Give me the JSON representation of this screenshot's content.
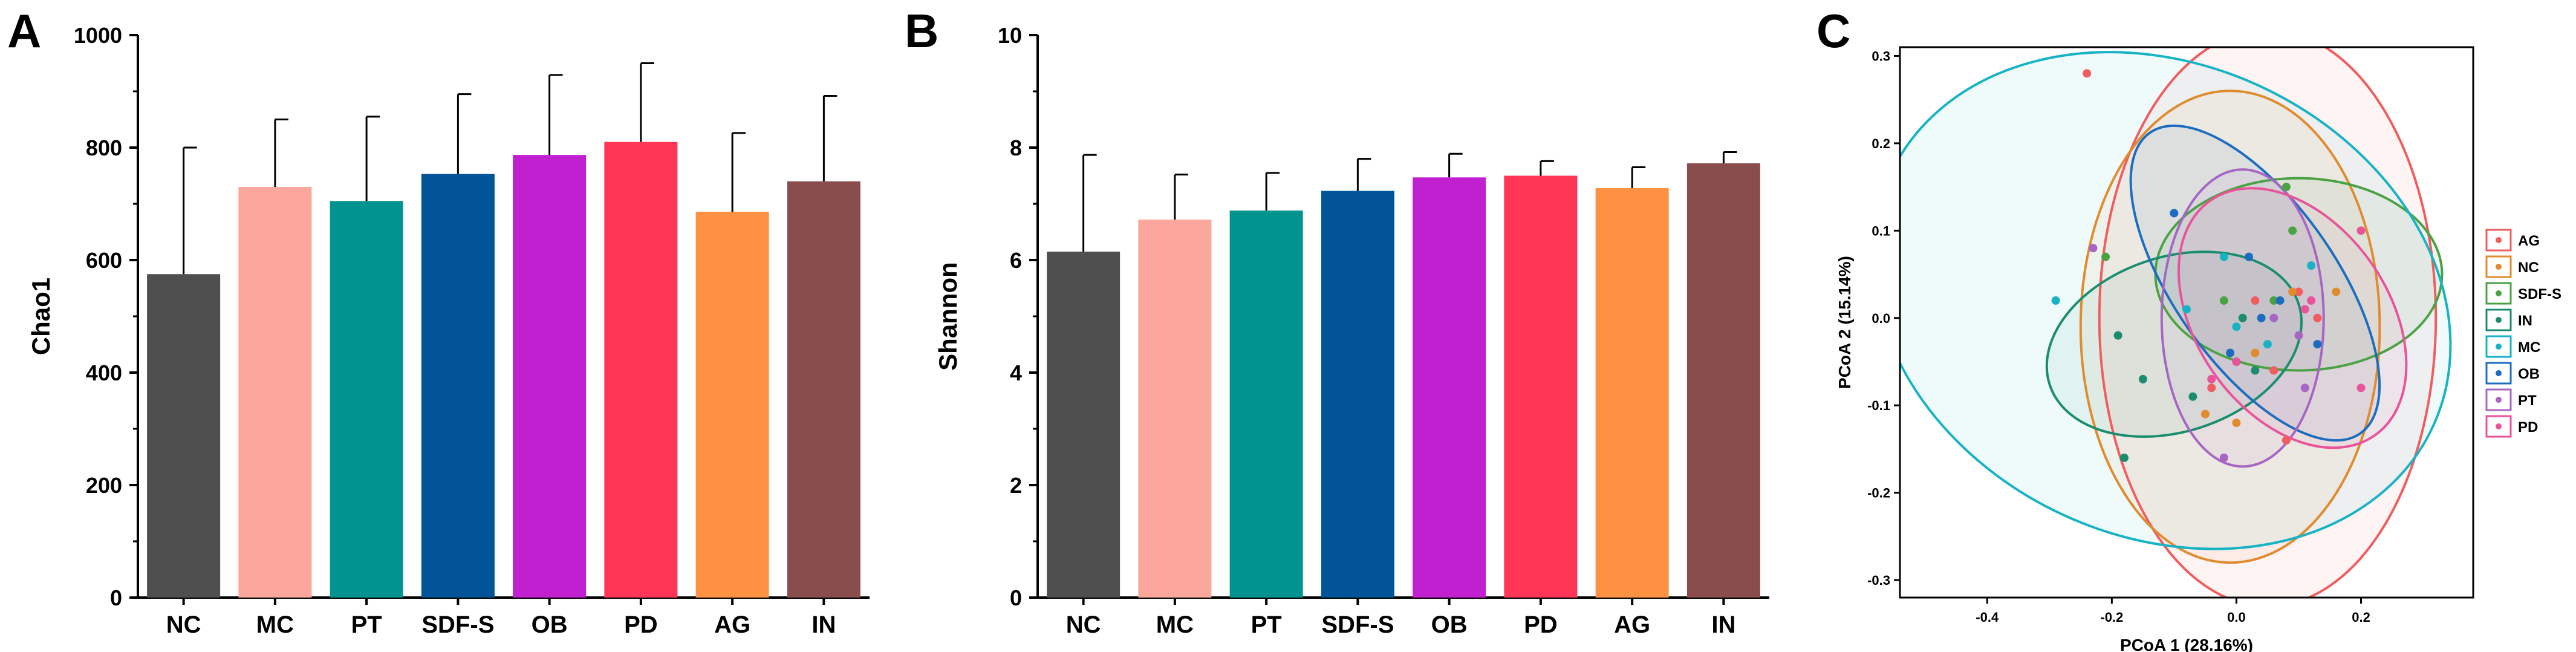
{
  "chart_data": [
    {
      "panel": "A",
      "type": "bar",
      "ylabel": "Chao1",
      "xlabel": "",
      "ylim": [
        0,
        1000
      ],
      "yticks": [
        0,
        200,
        400,
        600,
        800,
        1000
      ],
      "categories": [
        "NC",
        "MC",
        "PT",
        "SDF-S",
        "OB",
        "PD",
        "AG",
        "IN"
      ],
      "values": [
        575,
        730,
        705,
        753,
        787,
        810,
        686,
        740
      ],
      "errors": [
        225,
        120,
        150,
        142,
        142,
        140,
        140,
        152
      ],
      "colors": [
        "#4f4f4f",
        "#fba79b",
        "#00938f",
        "#005497",
        "#c120d0",
        "#ff3655",
        "#fe9143",
        "#8a4d4e"
      ]
    },
    {
      "panel": "B",
      "type": "bar",
      "ylabel": "Shannon",
      "xlabel": "",
      "ylim": [
        0,
        10
      ],
      "yticks": [
        0,
        2,
        4,
        6,
        8,
        10
      ],
      "categories": [
        "NC",
        "MC",
        "PT",
        "SDF-S",
        "OB",
        "PD",
        "AG",
        "IN"
      ],
      "values": [
        6.15,
        6.72,
        6.88,
        7.23,
        7.47,
        7.5,
        7.28,
        7.72
      ],
      "errors": [
        1.72,
        0.8,
        0.67,
        0.57,
        0.42,
        0.26,
        0.37,
        0.2
      ],
      "colors": [
        "#4f4f4f",
        "#fba79b",
        "#00938f",
        "#005497",
        "#c120d0",
        "#ff3655",
        "#fe9143",
        "#8a4d4e"
      ]
    },
    {
      "panel": "C",
      "type": "scatter",
      "xlabel": "PCoA 1 (28.16%)",
      "ylabel": "PCoA 2 (15.14%)",
      "xlim": [
        -0.54,
        0.38
      ],
      "ylim": [
        -0.32,
        0.31
      ],
      "xticks": [
        -0.4,
        -0.2,
        0.0,
        0.2
      ],
      "yticks": [
        -0.3,
        -0.2,
        -0.1,
        0.0,
        0.1,
        0.2,
        0.3
      ],
      "xtick_labels": [
        "-0.4",
        "-0.2",
        "0.0",
        "0.2"
      ],
      "ytick_labels": [
        "-0.3",
        "-0.2",
        "-0.1",
        "0.0",
        "0.1",
        "0.2",
        "0.3"
      ],
      "legend": [
        "AG",
        "NC",
        "SDF-S",
        "IN",
        "MC",
        "OB",
        "PT",
        "PD"
      ],
      "legend_position": "right",
      "series": [
        {
          "name": "AG",
          "color": "#f15d5f",
          "points": [
            [
              -0.24,
              0.28
            ],
            [
              0.08,
              -0.14
            ],
            [
              0.1,
              0.03
            ],
            [
              0.13,
              0.0
            ],
            [
              0.06,
              -0.06
            ],
            [
              -0.04,
              -0.08
            ],
            [
              0.03,
              0.02
            ]
          ],
          "ellipse": {
            "cx": 0.05,
            "cy": 0.0,
            "rx": 0.27,
            "ry": 0.33,
            "angle": 0
          }
        },
        {
          "name": "NC",
          "color": "#e08b2e",
          "points": [
            [
              -0.05,
              -0.11
            ],
            [
              0.0,
              -0.12
            ],
            [
              0.03,
              -0.04
            ],
            [
              0.16,
              0.03
            ],
            [
              0.09,
              0.03
            ]
          ],
          "ellipse": {
            "cx": -0.01,
            "cy": -0.01,
            "rx": 0.24,
            "ry": 0.27,
            "angle": 0
          }
        },
        {
          "name": "SDF-S",
          "color": "#4aa244",
          "points": [
            [
              -0.21,
              0.07
            ],
            [
              0.08,
              0.15
            ],
            [
              0.09,
              0.1
            ],
            [
              0.06,
              0.02
            ],
            [
              -0.02,
              0.02
            ]
          ],
          "ellipse": {
            "cx": 0.1,
            "cy": 0.05,
            "rx": 0.23,
            "ry": 0.11,
            "angle": 0
          }
        },
        {
          "name": "IN",
          "color": "#1a8d6e",
          "points": [
            [
              -0.18,
              -0.16
            ],
            [
              -0.19,
              -0.02
            ],
            [
              -0.15,
              -0.07
            ],
            [
              -0.07,
              -0.09
            ],
            [
              0.03,
              -0.06
            ],
            [
              0.0,
              -0.05
            ],
            [
              0.01,
              0.0
            ]
          ],
          "ellipse": {
            "cx": -0.1,
            "cy": -0.03,
            "rx": 0.21,
            "ry": 0.1,
            "angle": 18
          }
        },
        {
          "name": "MC",
          "color": "#17b3c5",
          "points": [
            [
              -0.29,
              0.02
            ],
            [
              0.12,
              0.06
            ],
            [
              -0.02,
              0.07
            ],
            [
              0.05,
              -0.03
            ],
            [
              0.0,
              -0.01
            ],
            [
              -0.08,
              0.01
            ]
          ],
          "ellipse": {
            "cx": -0.12,
            "cy": 0.02,
            "rx": 0.48,
            "ry": 0.27,
            "angle": -25
          }
        },
        {
          "name": "OB",
          "color": "#1c6dbf",
          "points": [
            [
              -0.1,
              0.12
            ],
            [
              0.02,
              0.07
            ],
            [
              0.07,
              0.02
            ],
            [
              0.13,
              -0.03
            ],
            [
              0.04,
              0.0
            ],
            [
              -0.01,
              -0.04
            ]
          ],
          "ellipse": {
            "cx": 0.03,
            "cy": 0.04,
            "rx": 0.13,
            "ry": 0.21,
            "angle": 35
          }
        },
        {
          "name": "PT",
          "color": "#a765c4",
          "points": [
            [
              -0.23,
              0.08
            ],
            [
              -0.02,
              -0.16
            ],
            [
              0.1,
              -0.02
            ],
            [
              0.11,
              -0.08
            ],
            [
              0.06,
              0.0
            ]
          ],
          "ellipse": {
            "cx": 0.01,
            "cy": 0.0,
            "rx": 0.13,
            "ry": 0.17,
            "angle": 0
          }
        },
        {
          "name": "PD",
          "color": "#e9539a",
          "points": [
            [
              0.2,
              0.1
            ],
            [
              0.2,
              -0.08
            ],
            [
              0.11,
              0.01
            ],
            [
              0.12,
              0.02
            ],
            [
              0.0,
              -0.05
            ],
            [
              -0.04,
              -0.07
            ]
          ],
          "ellipse": {
            "cx": 0.09,
            "cy": 0.0,
            "rx": 0.23,
            "ry": 0.11,
            "angle": -55
          }
        }
      ]
    }
  ],
  "panels": {
    "a": "A",
    "b": "B",
    "c": "C"
  }
}
